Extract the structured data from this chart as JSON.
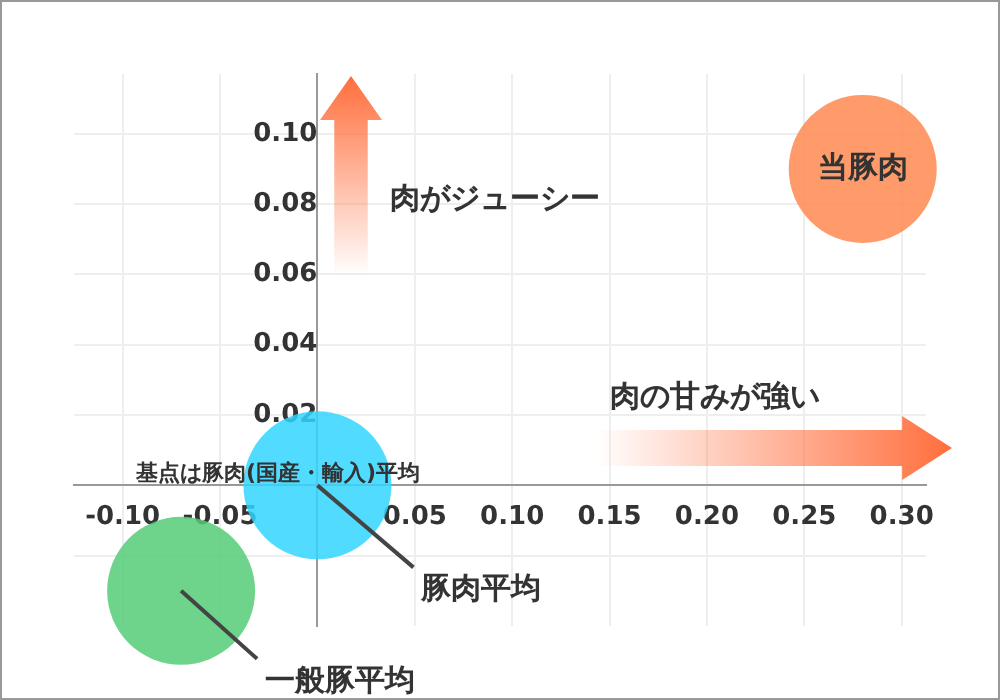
{
  "chart_data": {
    "type": "bubble",
    "series": [
      {
        "name": "当豚肉",
        "color": "#ff8a50",
        "x": [
          0.28
        ],
        "values": [
          0.09
        ],
        "sizes": [
          1
        ]
      },
      {
        "name": "豚肉平均",
        "color": "#33d6ff",
        "x": [
          0
        ],
        "values": [
          0
        ],
        "sizes": [
          1
        ]
      },
      {
        "name": "一般豚平均",
        "color": "#55cc77",
        "x": [
          -0.07
        ],
        "values": [
          -0.03
        ],
        "sizes": [
          1
        ]
      }
    ],
    "xlim": [
      -0.125,
      0.3125
    ],
    "xticks": [
      {
        "value": -0.1,
        "label": "-0.10"
      },
      {
        "value": -0.05,
        "label": "-0.05"
      },
      {
        "value": 0,
        "label": null
      },
      {
        "value": 0.05,
        "label": "0.05"
      },
      {
        "value": 0.1,
        "label": "0.10"
      },
      {
        "value": 0.15,
        "label": "0.15"
      },
      {
        "value": 0.2,
        "label": "0.20"
      },
      {
        "value": 0.25,
        "label": "0.25"
      },
      {
        "value": 0.3,
        "label": "0.30"
      }
    ],
    "ylim": [
      -0.04,
      0.117
    ],
    "yticks": [
      {
        "value": -0.02,
        "label": null
      },
      {
        "value": 0,
        "label": null
      },
      {
        "value": 0.02,
        "label": "0.02"
      },
      {
        "value": 0.04,
        "label": "0.04"
      },
      {
        "value": 0.06,
        "label": "0.06"
      },
      {
        "value": 0.08,
        "label": "0.08"
      },
      {
        "value": 0.1,
        "label": "0.10"
      }
    ],
    "annotations": [
      "肉がジューシー",
      "肉の甘みが強い",
      "基点は豚肉(国産・輸入)平均"
    ],
    "grid": true,
    "legend": false
  }
}
